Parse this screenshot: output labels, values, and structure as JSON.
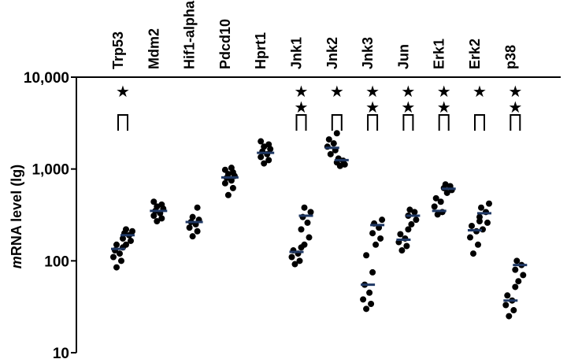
{
  "chart_data": {
    "type": "scatter",
    "title": "",
    "xlabel": "",
    "ylabel": "mRNA level (lg)",
    "ylabel_parts": {
      "italic": "m",
      "rest": "RNA level (lg)"
    },
    "y_scale": "log",
    "ylim": [
      10,
      10000
    ],
    "y_ticks": [
      {
        "value": 10,
        "label": "10"
      },
      {
        "value": 100,
        "label": "100"
      },
      {
        "value": 1000,
        "label": "1,000"
      },
      {
        "value": 10000,
        "label": "10,000"
      }
    ],
    "grid": false,
    "legend": "none",
    "colors": {
      "points": "#000000",
      "mean_bar": "#1f3864",
      "axis": "#000000"
    },
    "categories": [
      "Trp53",
      "Mdm2",
      "Hif1-alpha",
      "Pdcd10",
      "Hprt1",
      "Jnk1",
      "Jnk2",
      "Jnk3",
      "Jun",
      "Erk1",
      "Erk2",
      "p38"
    ],
    "groups": [
      {
        "category": "Trp53",
        "stars": 1,
        "paired": true,
        "left": {
          "points": [
            85,
            100,
            110,
            120,
            130,
            140,
            150
          ],
          "mean": 135
        },
        "right": {
          "points": [
            150,
            165,
            175,
            190,
            200,
            210,
            220
          ],
          "mean": 190
        }
      },
      {
        "category": "Mdm2",
        "stars": 0,
        "paired": false,
        "points": [
          270,
          290,
          310,
          330,
          350,
          370,
          390,
          410,
          440
        ],
        "mean": 350
      },
      {
        "category": "Hif1-alpha",
        "stars": 0,
        "paired": false,
        "points": [
          185,
          210,
          230,
          250,
          265,
          280,
          300,
          380
        ],
        "mean": 265
      },
      {
        "category": "Pdcd10",
        "stars": 0,
        "paired": false,
        "points": [
          520,
          620,
          700,
          750,
          800,
          840,
          880,
          920,
          980,
          1030
        ],
        "mean": 810
      },
      {
        "category": "Hprt1",
        "stars": 0,
        "paired": false,
        "points": [
          1150,
          1250,
          1350,
          1450,
          1550,
          1650,
          1750,
          1850,
          2000
        ],
        "mean": 1500
      },
      {
        "category": "Jnk1",
        "stars": 2,
        "paired": true,
        "left": {
          "points": [
            92,
            100,
            110,
            120,
            130,
            140
          ],
          "mean": 125
        },
        "right": {
          "points": [
            150,
            180,
            220,
            260,
            300,
            340,
            380
          ],
          "mean": 310
        }
      },
      {
        "category": "Jnk2",
        "stars": 1,
        "paired": true,
        "left": {
          "points": [
            1450,
            1600,
            1750,
            1900,
            2100,
            2450
          ],
          "mean": 1700
        },
        "right": {
          "points": [
            1080,
            1120,
            1180,
            1230,
            1300
          ],
          "mean": 1250
        }
      },
      {
        "category": "Jnk3",
        "stars": 2,
        "paired": true,
        "left": {
          "points": [
            30,
            34,
            38,
            45,
            55,
            75,
            115
          ],
          "mean": 55
        },
        "right": {
          "points": [
            150,
            175,
            200,
            230,
            255,
            280
          ],
          "mean": 245
        }
      },
      {
        "category": "Jun",
        "stars": 2,
        "paired": true,
        "left": {
          "points": [
            130,
            145,
            160,
            175,
            195,
            220
          ],
          "mean": 170
        },
        "right": {
          "points": [
            250,
            280,
            310,
            340,
            360
          ],
          "mean": 310
        }
      },
      {
        "category": "Erk1",
        "stars": 2,
        "paired": true,
        "left": {
          "points": [
            320,
            340,
            390,
            440,
            480
          ],
          "mean": 350
        },
        "right": {
          "points": [
            550,
            590,
            620,
            650,
            680
          ],
          "mean": 610
        }
      },
      {
        "category": "Erk2",
        "stars": 1,
        "paired": true,
        "left": {
          "points": [
            120,
            150,
            180,
            210,
            240,
            270
          ],
          "mean": 215
        },
        "right": {
          "points": [
            220,
            260,
            300,
            340,
            380,
            420
          ],
          "mean": 330
        }
      },
      {
        "category": "p38",
        "stars": 2,
        "paired": true,
        "left": {
          "points": [
            25,
            29,
            33,
            37,
            42,
            52
          ],
          "mean": 37
        },
        "right": {
          "points": [
            60,
            70,
            80,
            90,
            100
          ],
          "mean": 90
        }
      }
    ]
  }
}
